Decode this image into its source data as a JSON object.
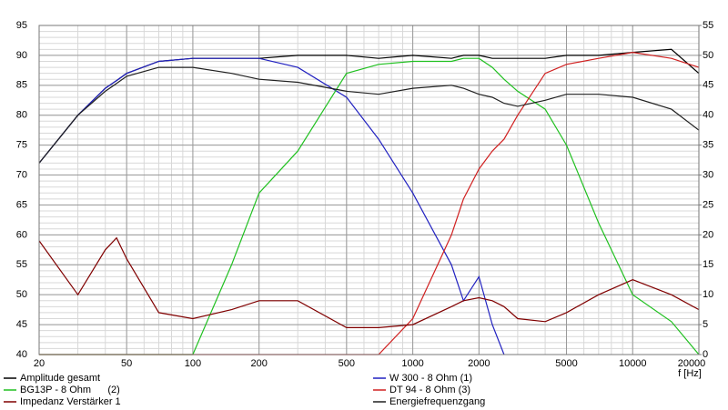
{
  "chart_data": {
    "type": "line",
    "x_label": "f [Hz]",
    "x": [
      20,
      30,
      40,
      45,
      50,
      70,
      100,
      150,
      200,
      300,
      500,
      700,
      1000,
      1500,
      1700,
      2000,
      2300,
      2600,
      3000,
      4000,
      5000,
      7000,
      10000,
      15000,
      20000
    ],
    "xlim": [
      20,
      20000
    ],
    "xticks": [
      20,
      50,
      100,
      200,
      500,
      1000,
      2000,
      5000,
      10000,
      20000
    ],
    "x_log": true,
    "ylim": [
      40,
      95
    ],
    "yticks": [
      40,
      45,
      50,
      55,
      60,
      65,
      70,
      75,
      80,
      85,
      90,
      95
    ],
    "y2lim": [
      0,
      55
    ],
    "y2ticks": [
      0,
      5,
      10,
      15,
      20,
      25,
      30,
      35,
      40,
      45,
      50,
      55
    ],
    "grid": true,
    "series": [
      {
        "name": "Amplitude gesamt",
        "color": "#000000",
        "values": [
          72,
          80,
          84.5,
          85.8,
          87,
          89,
          89.5,
          89.5,
          89.5,
          90,
          90,
          89.5,
          90,
          89.5,
          90,
          90,
          89.5,
          89.5,
          89.5,
          89.5,
          90,
          90,
          90.5,
          91,
          87
        ]
      },
      {
        "name": "W 300 - 8 Ohm (1)",
        "color": "#2020c0",
        "values": [
          72,
          80,
          84.5,
          85.8,
          87,
          89,
          89.5,
          89.5,
          89.5,
          88,
          83,
          76,
          67,
          55,
          49,
          53,
          45,
          40,
          null,
          null,
          null,
          null,
          null,
          null,
          null
        ]
      },
      {
        "name": "BG13P - 8 Ohm      (2)",
        "color": "#20c020",
        "values": [
          40,
          40,
          40,
          40,
          40,
          40,
          40,
          55,
          67,
          74,
          87,
          88.5,
          89,
          89,
          89.5,
          89.5,
          88,
          86,
          84,
          81,
          75,
          62,
          50,
          45.5,
          40
        ]
      },
      {
        "name": "DT 94 - 8 Ohm (3)",
        "color": "#d02020",
        "values": [
          40,
          40,
          40,
          40,
          40,
          40,
          40,
          40,
          40,
          40,
          40,
          40,
          46,
          60,
          66,
          71,
          74,
          76,
          80,
          87,
          88.5,
          89.5,
          90.5,
          89.5,
          88
        ]
      },
      {
        "name": "Impedanz Verstärker 1",
        "color": "#800000",
        "axis": "y2",
        "values": [
          19,
          10,
          17.5,
          19.5,
          16,
          7,
          6,
          7.5,
          9,
          9,
          4.5,
          4.5,
          5,
          8,
          9,
          9.5,
          9,
          8,
          6,
          5.5,
          7,
          10,
          12.5,
          10,
          7.5
        ]
      },
      {
        "name": "Energiefrequenzgang",
        "color": "#202020",
        "values": [
          72,
          80,
          84,
          85.3,
          86.5,
          88,
          88,
          87,
          86,
          85.5,
          84,
          83.5,
          84.5,
          85,
          84.5,
          83.5,
          83,
          82,
          81.5,
          82.5,
          83.5,
          83.5,
          83,
          81,
          77.5
        ]
      }
    ]
  }
}
